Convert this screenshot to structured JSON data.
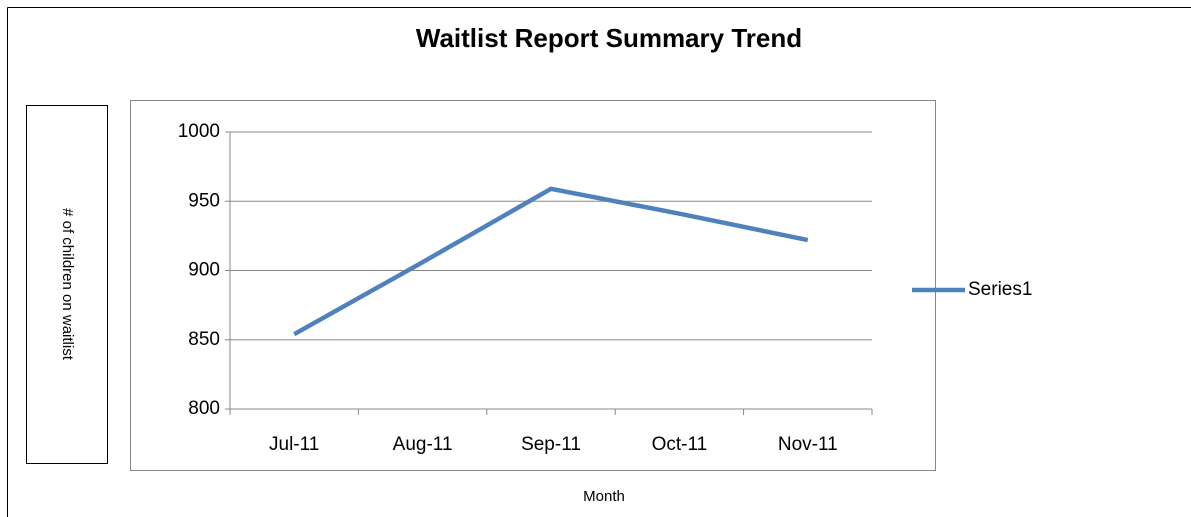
{
  "chart_data": {
    "type": "line",
    "title": "Waitlist Report Summary Trend",
    "x_label": "Month",
    "y_label": "# of children on waitlist",
    "categories": [
      "Jul-11",
      "Aug-11",
      "Sep-11",
      "Oct-11",
      "Nov-11"
    ],
    "series": [
      {
        "name": "Series1",
        "color": "#4f81bd",
        "values": [
          854,
          906,
          959,
          941,
          922
        ]
      }
    ],
    "ylim": [
      800,
      1000
    ],
    "yticks": [
      800,
      850,
      900,
      950,
      1000
    ],
    "grid": true,
    "legend": "right"
  }
}
